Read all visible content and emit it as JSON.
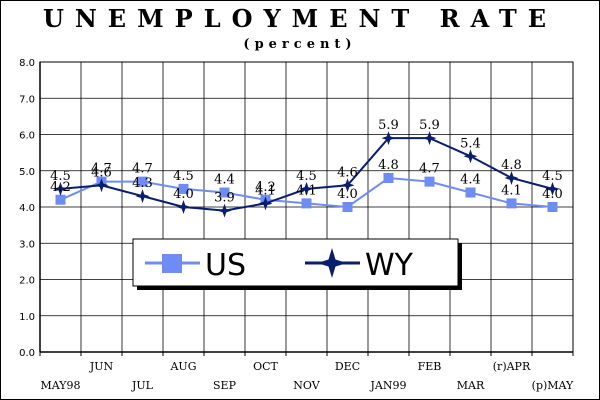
{
  "chart_data": {
    "type": "line",
    "title": "UNEMPLOYMENT RATE",
    "subtitle": "(percent)",
    "categories": [
      "MAY98",
      "JUN",
      "JUL",
      "AUG",
      "SEP",
      "OCT",
      "NOV",
      "DEC",
      "JAN99",
      "FEB",
      "MAR",
      "(r)APR",
      "(p)MAY"
    ],
    "ylim": [
      0,
      8
    ],
    "yticks": [
      "0.0",
      "1.0",
      "2.0",
      "3.0",
      "4.0",
      "5.0",
      "6.0",
      "7.0",
      "8.0"
    ],
    "grid": true,
    "legend_position": "center",
    "series": [
      {
        "name": "US",
        "color": "#6f8cf5",
        "marker": "square",
        "values": [
          4.2,
          4.7,
          4.7,
          4.5,
          4.4,
          4.2,
          4.1,
          4.0,
          4.8,
          4.7,
          4.4,
          4.1,
          4.0
        ],
        "labels": [
          "4.2",
          "4.7",
          "4.7",
          "4.5",
          "4.4",
          "4.2",
          "4.1",
          "4.0",
          "4.8",
          "4.7",
          "4.4",
          "4.1",
          "4.0"
        ]
      },
      {
        "name": "WY",
        "color": "#0a1e6e",
        "marker": "star",
        "values": [
          4.5,
          4.6,
          4.3,
          4.0,
          3.9,
          4.1,
          4.5,
          4.6,
          5.9,
          5.9,
          5.4,
          4.8,
          4.5
        ],
        "labels": [
          "4.5",
          "4.6",
          "4.3",
          "4.0",
          "3.9",
          "4.1",
          "4.5",
          "4.6",
          "5.9",
          "5.9",
          "5.4",
          "4.8",
          "4.5"
        ]
      }
    ]
  }
}
